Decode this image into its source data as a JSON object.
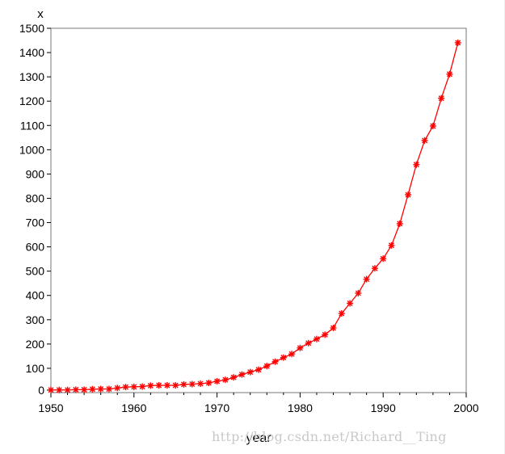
{
  "chart_data": {
    "type": "line",
    "title": "",
    "xlabel": "year",
    "ylabel": "x",
    "xlim": [
      1950,
      2000
    ],
    "ylim": [
      0,
      1500
    ],
    "xticks": [
      1950,
      1960,
      1970,
      1980,
      1990,
      2000
    ],
    "yticks": [
      0,
      100,
      200,
      300,
      400,
      500,
      600,
      700,
      800,
      900,
      1000,
      1100,
      1200,
      1300,
      1400,
      1500
    ],
    "grid": false,
    "legend": "none",
    "marker": "asterisk",
    "color": "#ff0000",
    "series": [
      {
        "x": [
          1950,
          1951,
          1952,
          1953,
          1954,
          1955,
          1956,
          1957,
          1958,
          1959,
          1960,
          1961,
          1962,
          1963,
          1964,
          1965,
          1966,
          1967,
          1968,
          1969,
          1970,
          1971,
          1972,
          1973,
          1974,
          1975,
          1976,
          1977,
          1978,
          1979,
          1980,
          1981,
          1982,
          1983,
          1984,
          1985,
          1986,
          1987,
          1988,
          1989,
          1990,
          1991,
          1992,
          1993,
          1994,
          1995,
          1996,
          1997,
          1998,
          1999
        ],
        "values": [
          1,
          1,
          1,
          2,
          2,
          4,
          5,
          5,
          9,
          13,
          14,
          15,
          19,
          20,
          20,
          20,
          24,
          25,
          27,
          30,
          37,
          43,
          53,
          65,
          75,
          85,
          100,
          118,
          135,
          150,
          175,
          195,
          212,
          230,
          258,
          318,
          360,
          402,
          460,
          505,
          545,
          600,
          690,
          810,
          935,
          1035,
          1095,
          1210,
          1310,
          1440
        ]
      }
    ]
  },
  "watermark": "http://blog.csdn.net/Richard__Ting"
}
